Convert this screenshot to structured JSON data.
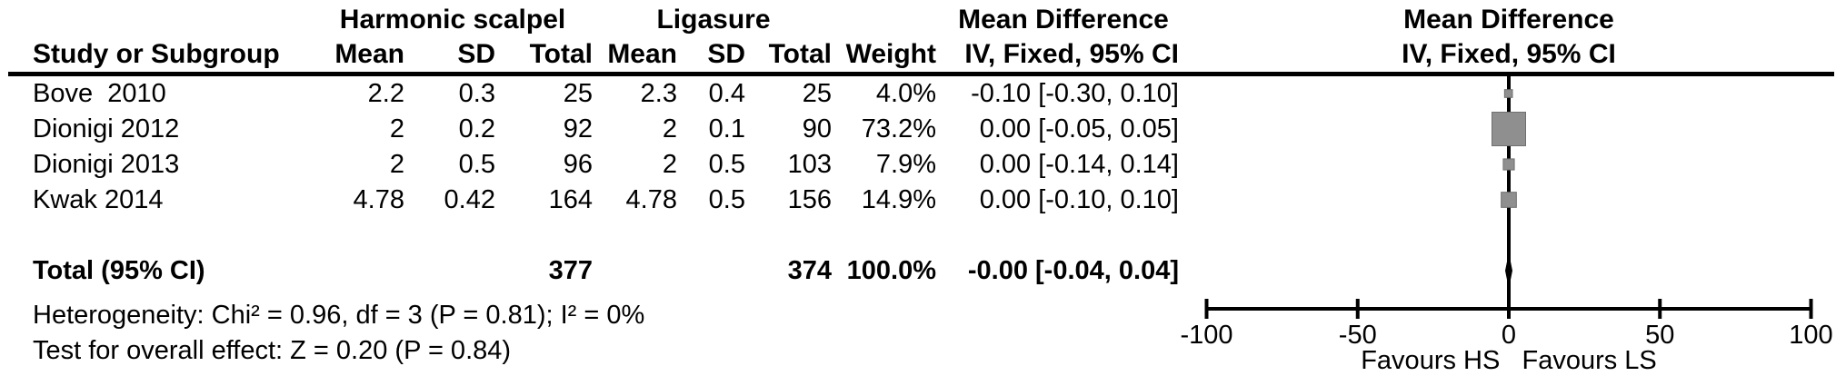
{
  "table": {
    "group_headers": {
      "harmonic": "Harmonic scalpel",
      "ligasure": "Ligasure",
      "mean_diff_left": "Mean Difference",
      "mean_diff_right": "Mean Difference"
    },
    "col_headers": {
      "study": "Study or Subgroup",
      "mean_hs": "Mean",
      "sd_hs": "SD",
      "total_hs": "Total",
      "mean_ls": "Mean",
      "sd_ls": "SD",
      "total_ls": "Total",
      "weight": "Weight",
      "ci_left": "IV, Fixed, 95% CI",
      "ci_right": "IV, Fixed, 95% CI"
    },
    "rows": [
      {
        "study": "Bove  2010",
        "mean1": "2.2",
        "sd1": "0.3",
        "total1": "25",
        "mean2": "2.3",
        "sd2": "0.4",
        "total2": "25",
        "weight": "4.0%",
        "ci": "-0.10 [-0.30, 0.10]"
      },
      {
        "study": "Dionigi 2012",
        "mean1": "2",
        "sd1": "0.2",
        "total1": "92",
        "mean2": "2",
        "sd2": "0.1",
        "total2": "90",
        "weight": "73.2%",
        "ci": "0.00 [-0.05, 0.05]"
      },
      {
        "study": "Dionigi 2013",
        "mean1": "2",
        "sd1": "0.5",
        "total1": "96",
        "mean2": "2",
        "sd2": "0.5",
        "total2": "103",
        "weight": "7.9%",
        "ci": "0.00 [-0.14, 0.14]"
      },
      {
        "study": "Kwak 2014",
        "mean1": "4.78",
        "sd1": "0.42",
        "total1": "164",
        "mean2": "4.78",
        "sd2": "0.5",
        "total2": "156",
        "weight": "14.9%",
        "ci": "0.00 [-0.10, 0.10]"
      }
    ],
    "total_row": {
      "label": "Total (95% CI)",
      "total1": "377",
      "total2": "374",
      "weight": "100.0%",
      "ci": "-0.00 [-0.04, 0.04]"
    },
    "footnotes": {
      "heterogeneity": "Heterogeneity: Chi² = 0.96, df = 3 (P = 0.81); I² = 0%",
      "overall_effect": "Test for overall effect: Z = 0.20 (P = 0.84)"
    }
  },
  "chart_data": {
    "type": "forest",
    "effect_measure": "Mean Difference, IV, Fixed, 95% CI",
    "studies": [
      {
        "name": "Bove  2010",
        "effect": -0.1,
        "ci": [
          -0.3,
          0.1
        ],
        "weight_pct": 4.0
      },
      {
        "name": "Dionigi 2012",
        "effect": 0.0,
        "ci": [
          -0.05,
          0.05
        ],
        "weight_pct": 73.2
      },
      {
        "name": "Dionigi 2013",
        "effect": 0.0,
        "ci": [
          -0.14,
          0.14
        ],
        "weight_pct": 7.9
      },
      {
        "name": "Kwak 2014",
        "effect": 0.0,
        "ci": [
          -0.1,
          0.1
        ],
        "weight_pct": 14.9
      }
    ],
    "total": {
      "effect": -0.0,
      "ci": [
        -0.04,
        0.04
      ]
    },
    "axis": {
      "min": -100,
      "max": 100,
      "ticks": [
        -100,
        -50,
        0,
        50,
        100
      ]
    },
    "favours": "Favours HS   Favours LS",
    "marker_color": "#8f8f8f",
    "marker_border_color": "#6f6f6f",
    "line_color": "#000000"
  }
}
